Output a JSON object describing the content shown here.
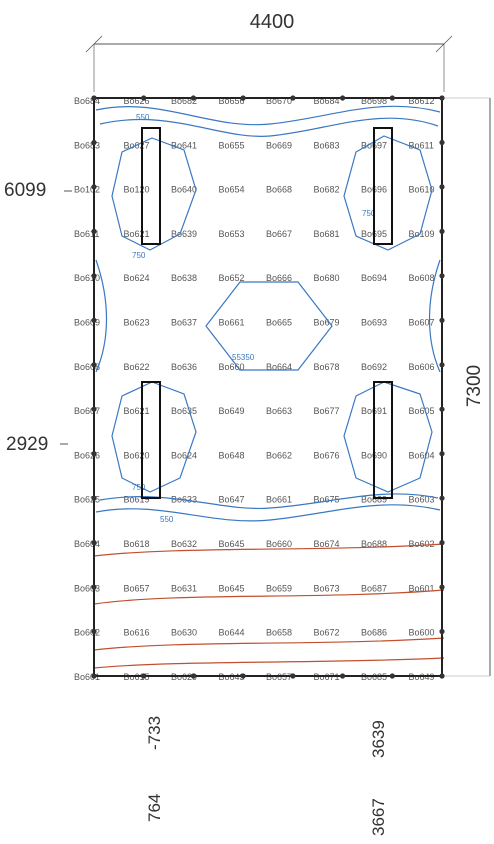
{
  "dimensions": {
    "width_label": "4400",
    "height_label": "7300",
    "left_upper": "6099",
    "left_lower": "2929",
    "bottom_left_a": "764",
    "bottom_left_b": "-733",
    "bottom_right_a": "3667",
    "bottom_right_b": "3639"
  },
  "iso_labels": {
    "top": "550",
    "mid_upper_left": "750",
    "mid_upper_right": "750",
    "center": "55350",
    "lower_left": "750",
    "bottom": "550"
  },
  "colors": {
    "frame": "#222222",
    "blue_contour": "#3a78c2",
    "red_contour": "#c0502e",
    "fixture": "#111111",
    "node": "#333333"
  },
  "grid_labels": [
    [
      "Bo684",
      "Bo626",
      "Bo682",
      "Bo656",
      "Bo670",
      "Bo684",
      "Bo698",
      "Bo612"
    ],
    [
      "Bo683",
      "Bo627",
      "Bo641",
      "Bo655",
      "Bo669",
      "Bo683",
      "Bo697",
      "Bo611"
    ],
    [
      "Bo102",
      "Bo120",
      "Bo640",
      "Bo654",
      "Bo668",
      "Bo682",
      "Bo696",
      "Bo610"
    ],
    [
      "Bo611",
      "Bo621",
      "Bo639",
      "Bo653",
      "Bo667",
      "Bo681",
      "Bo695",
      "Bo109"
    ],
    [
      "Bo610",
      "Bo624",
      "Bo638",
      "Bo652",
      "Bo666",
      "Bo680",
      "Bo694",
      "Bo608"
    ],
    [
      "Bo609",
      "Bo623",
      "Bo637",
      "Bo661",
      "Bo665",
      "Bo679",
      "Bo693",
      "Bo607"
    ],
    [
      "Bo608",
      "Bo622",
      "Bo636",
      "Bo660",
      "Bo664",
      "Bo678",
      "Bo692",
      "Bo606"
    ],
    [
      "Bo607",
      "Bo621",
      "Bo635",
      "Bo649",
      "Bo663",
      "Bo677",
      "Bo691",
      "Bo605"
    ],
    [
      "Bo626",
      "Bo620",
      "Bo624",
      "Bo648",
      "Bo662",
      "Bo676",
      "Bo690",
      "Bo604"
    ],
    [
      "Bo625",
      "Bo619",
      "Bo633",
      "Bo647",
      "Bo661",
      "Bo675",
      "Bo689",
      "Bo603"
    ],
    [
      "Bo604",
      "Bo618",
      "Bo632",
      "Bo645",
      "Bo660",
      "Bo674",
      "Bo688",
      "Bo602"
    ],
    [
      "Bo603",
      "Bo657",
      "Bo631",
      "Bo645",
      "Bo659",
      "Bo673",
      "Bo687",
      "Bo601"
    ],
    [
      "Bo602",
      "Bo616",
      "Bo630",
      "Bo644",
      "Bo658",
      "Bo672",
      "Bo686",
      "Bo600"
    ],
    [
      "Bo601",
      "Bo615",
      "Bo629",
      "Bo643",
      "Bo657",
      "Bo671",
      "Bo685",
      "Bo649"
    ]
  ]
}
